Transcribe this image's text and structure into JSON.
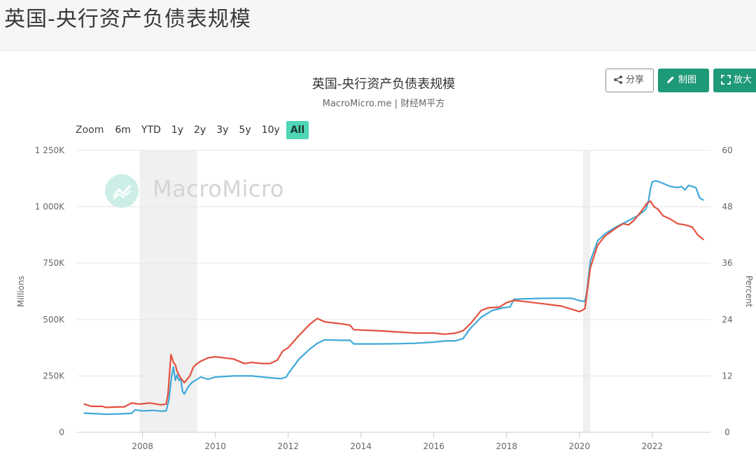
{
  "page": {
    "title": "英国-央行资产负债表规模"
  },
  "toolbar": {
    "share_label": "分享",
    "draw_label": "制图",
    "zoom_label": "放大",
    "share_icon": "share-icon",
    "draw_icon": "pencil-icon",
    "zoom_icon": "expand-icon"
  },
  "range_selector": {
    "label": "Zoom",
    "options": [
      "6m",
      "YTD",
      "1y",
      "2y",
      "3y",
      "5y",
      "10y",
      "All"
    ],
    "active": "All"
  },
  "watermark": {
    "text": "MacroMicro"
  },
  "colors": {
    "blue_series": "#3fa9d8",
    "red_series": "#e4503d",
    "active_range": "#4fd6b6",
    "button_green": "#1f9a78",
    "recession_band": "#f0f0f0"
  },
  "chart_data": {
    "type": "line",
    "title": "英国-央行资产负债表规模",
    "subtitle": "MacroMicro.me | 财经M平方",
    "ylabel": "Millions",
    "y2label": "Percent",
    "x_ticks": [
      "2008",
      "2010",
      "2012",
      "2014",
      "2016",
      "2018",
      "2020",
      "2022"
    ],
    "y_ticks": [
      "0",
      "250K",
      "500K",
      "750K",
      "1 000K",
      "1 250K"
    ],
    "y2_ticks": [
      "0",
      "12",
      "24",
      "36",
      "48",
      "60"
    ],
    "ylim": [
      0,
      1250000
    ],
    "y2lim": [
      0,
      60
    ],
    "xlim": [
      2006.2,
      2023.6
    ],
    "grid": true,
    "shaded_ranges": [
      [
        2007.92,
        2009.5
      ],
      [
        2020.1,
        2020.3
      ]
    ],
    "series": [
      {
        "axis": "left",
        "color": "#3fa9d8",
        "x": [
          2006.4,
          2006.8,
          2007.0,
          2007.4,
          2007.7,
          2007.8,
          2008.0,
          2008.3,
          2008.5,
          2008.65,
          2008.72,
          2008.8,
          2008.85,
          2008.9,
          2008.95,
          2009.0,
          2009.05,
          2009.1,
          2009.15,
          2009.25,
          2009.35,
          2009.45,
          2009.5,
          2009.6,
          2009.8,
          2010.0,
          2010.5,
          2011.0,
          2011.5,
          2011.8,
          2011.95,
          2012.0,
          2012.3,
          2012.6,
          2012.8,
          2013.0,
          2013.5,
          2013.7,
          2013.8,
          2014.5,
          2015.0,
          2015.5,
          2016.0,
          2016.3,
          2016.6,
          2016.8,
          2017.0,
          2017.3,
          2017.6,
          2017.9,
          2018.1,
          2018.2,
          2018.5,
          2019.0,
          2019.5,
          2019.8,
          2020.0,
          2020.15,
          2020.2,
          2020.3,
          2020.5,
          2020.7,
          2021.0,
          2021.3,
          2021.6,
          2021.8,
          2021.85,
          2021.9,
          2021.95,
          2022.0,
          2022.1,
          2022.2,
          2022.5,
          2022.7,
          2022.8,
          2022.9,
          2023.0,
          2023.1,
          2023.2,
          2023.3,
          2023.4
        ],
        "y": [
          85000,
          82000,
          80000,
          82000,
          84000,
          100000,
          95000,
          97000,
          94000,
          95000,
          140000,
          250000,
          290000,
          230000,
          255000,
          230000,
          240000,
          180000,
          170000,
          200000,
          220000,
          230000,
          235000,
          245000,
          235000,
          245000,
          250000,
          250000,
          242000,
          238000,
          245000,
          260000,
          325000,
          370000,
          395000,
          410000,
          408000,
          408000,
          392000,
          392000,
          393000,
          395000,
          400000,
          405000,
          406000,
          415000,
          460000,
          510000,
          540000,
          552000,
          556000,
          590000,
          592000,
          594000,
          595000,
          594000,
          584000,
          580000,
          620000,
          760000,
          850000,
          880000,
          910000,
          935000,
          960000,
          985000,
          1000000,
          1030000,
          1080000,
          1110000,
          1115000,
          1110000,
          1090000,
          1085000,
          1090000,
          1075000,
          1095000,
          1090000,
          1085000,
          1040000,
          1030000
        ]
      },
      {
        "axis": "left",
        "color": "#e4503d",
        "x": [
          2006.4,
          2006.6,
          2006.9,
          2007.0,
          2007.2,
          2007.5,
          2007.7,
          2007.9,
          2008.2,
          2008.5,
          2008.65,
          2008.7,
          2008.78,
          2008.85,
          2008.9,
          2008.95,
          2009.05,
          2009.15,
          2009.3,
          2009.4,
          2009.5,
          2009.6,
          2009.8,
          2010.0,
          2010.5,
          2010.8,
          2011.0,
          2011.3,
          2011.5,
          2011.7,
          2011.85,
          2012.0,
          2012.3,
          2012.6,
          2012.8,
          2013.0,
          2013.5,
          2013.7,
          2013.8,
          2014.5,
          2015.0,
          2015.5,
          2016.0,
          2016.3,
          2016.6,
          2016.8,
          2017.0,
          2017.3,
          2017.5,
          2017.8,
          2018.0,
          2018.2,
          2018.6,
          2019.0,
          2019.5,
          2019.8,
          2020.0,
          2020.15,
          2020.2,
          2020.3,
          2020.5,
          2020.7,
          2021.0,
          2021.2,
          2021.35,
          2021.5,
          2021.7,
          2021.85,
          2021.95,
          2022.05,
          2022.15,
          2022.3,
          2022.5,
          2022.7,
          2022.9,
          2023.1,
          2023.25,
          2023.4
        ],
        "y": [
          125000,
          115000,
          115000,
          110000,
          112000,
          113000,
          130000,
          125000,
          130000,
          122000,
          125000,
          170000,
          345000,
          310000,
          300000,
          270000,
          240000,
          220000,
          250000,
          290000,
          305000,
          315000,
          330000,
          335000,
          325000,
          305000,
          310000,
          305000,
          305000,
          320000,
          360000,
          375000,
          430000,
          480000,
          505000,
          490000,
          480000,
          475000,
          455000,
          450000,
          445000,
          440000,
          440000,
          435000,
          440000,
          450000,
          480000,
          540000,
          552000,
          555000,
          575000,
          585000,
          578000,
          570000,
          560000,
          545000,
          535000,
          548000,
          610000,
          730000,
          830000,
          870000,
          905000,
          925000,
          920000,
          940000,
          980000,
          1015000,
          1025000,
          1000000,
          990000,
          960000,
          945000,
          925000,
          920000,
          910000,
          875000,
          855000
        ]
      }
    ]
  }
}
